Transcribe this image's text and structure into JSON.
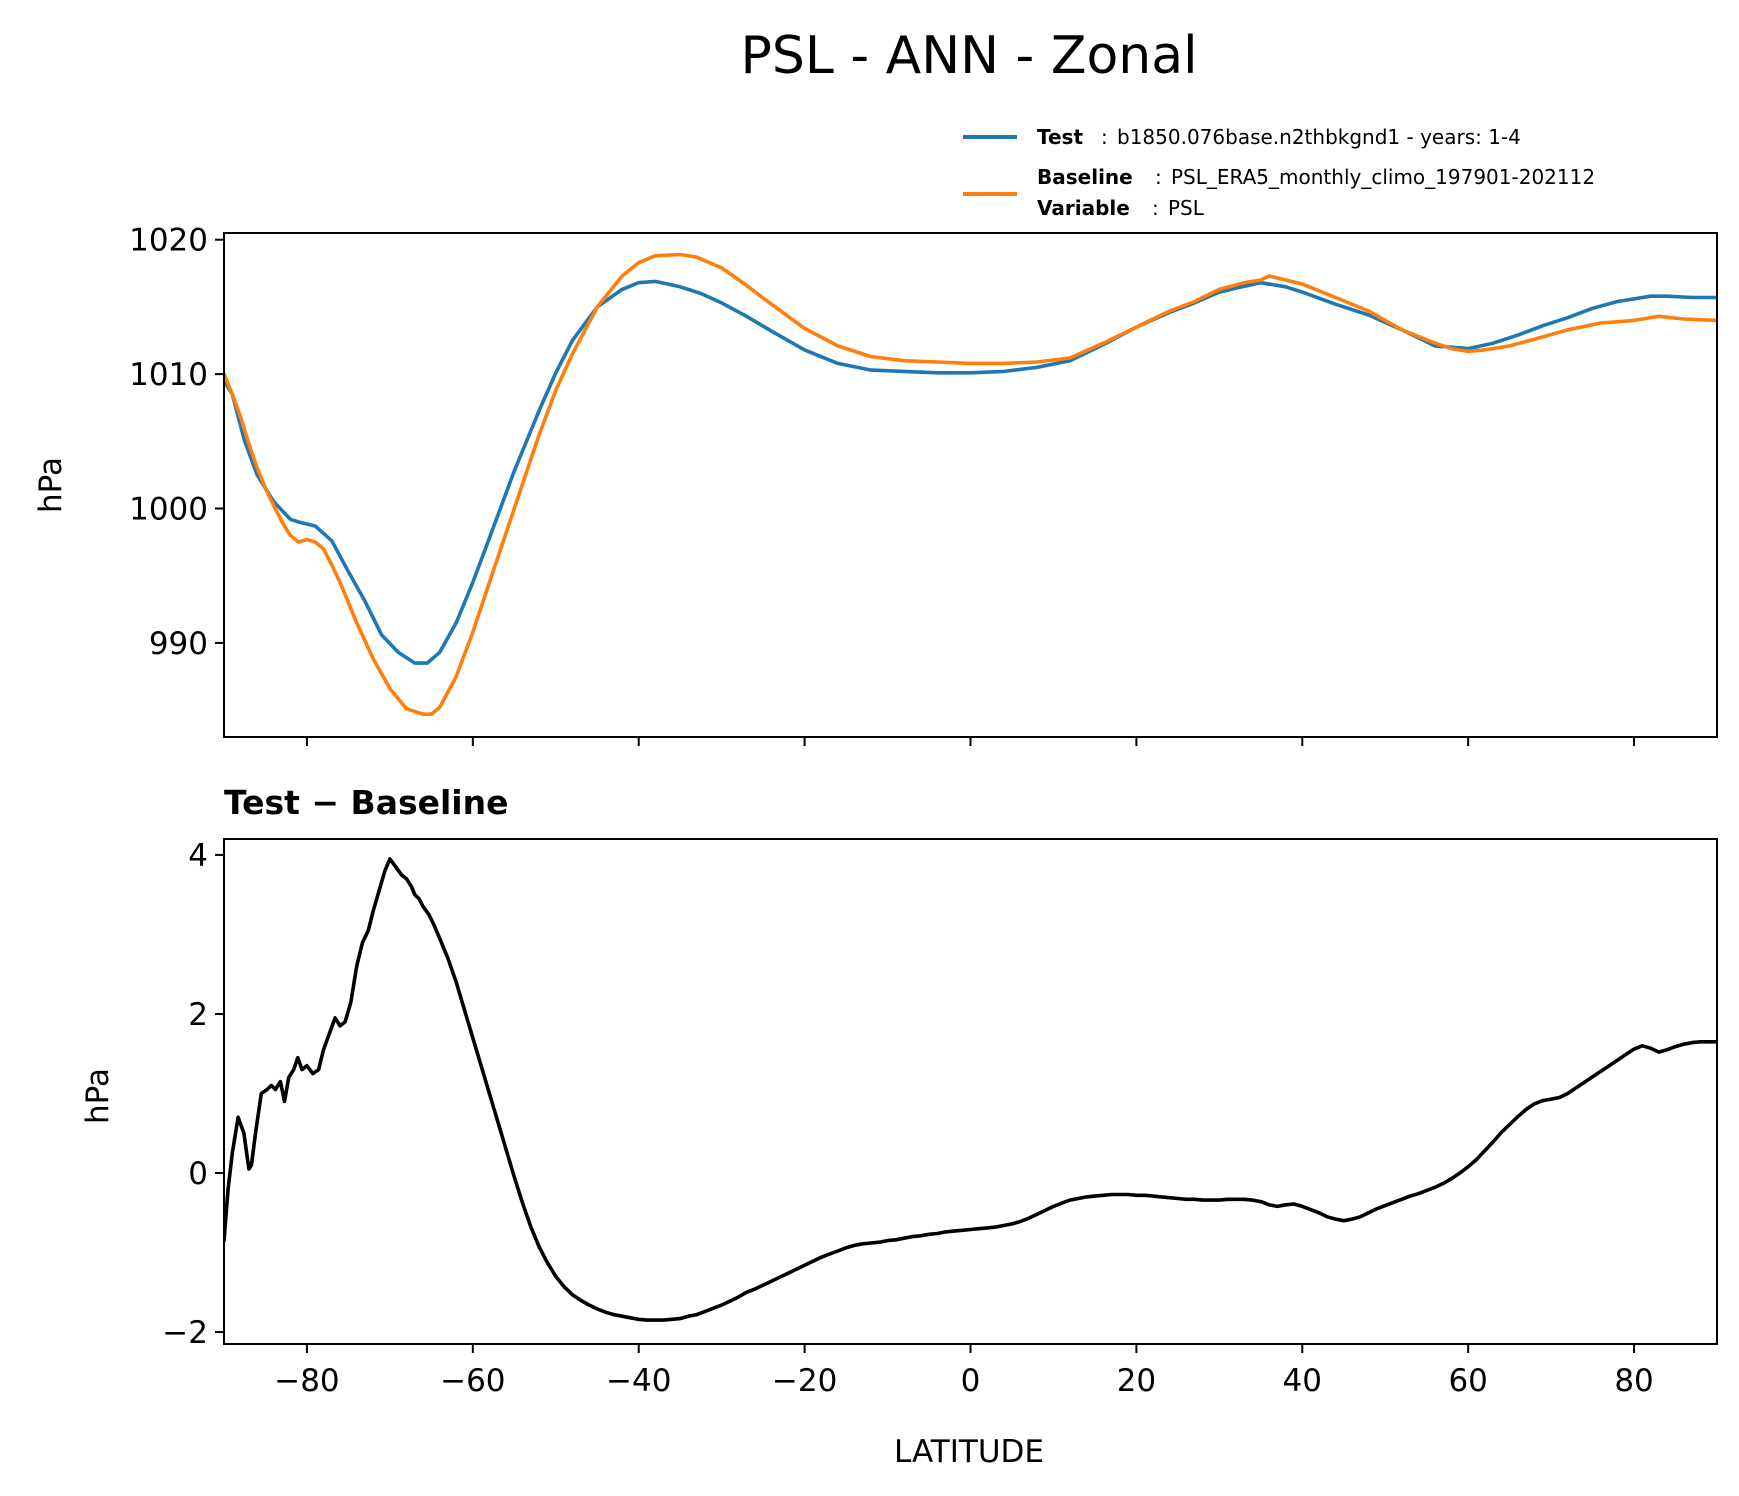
{
  "figure_title": "PSL - ANN - Zonal",
  "legend": {
    "test_label": "Test",
    "test_value": "b1850.076base.n2thbkgnd1 - years: 1-4",
    "baseline_label": "Baseline",
    "baseline_value": "PSL_ERA5_monthly_climo_197901-202112",
    "variable_label": "Variable",
    "variable_value": "PSL",
    "separator": ":"
  },
  "colors": {
    "test": "#1f77b4",
    "baseline": "#ff7f0e",
    "diff": "#000000"
  },
  "chart_data": [
    {
      "type": "line",
      "title": "",
      "xlabel": "",
      "ylabel": "hPa",
      "xlim": [
        -90,
        90
      ],
      "ylim": [
        983,
        1020.5
      ],
      "yticks": [
        990,
        1000,
        1010,
        1020
      ],
      "xticks": [
        -80,
        -60,
        -40,
        -20,
        0,
        20,
        40,
        60,
        80
      ],
      "xtick_labels_shown": false,
      "grid": false,
      "legend_position": "above-right",
      "series": [
        {
          "name": "Test",
          "color": "#1f77b4",
          "x": [
            -90,
            -89,
            -87.5,
            -86,
            -84,
            -82,
            -81,
            -79,
            -77,
            -75,
            -73,
            -71,
            -69,
            -67,
            -65.5,
            -64,
            -62,
            -60,
            -58,
            -55,
            -52,
            -50,
            -48,
            -45,
            -42,
            -40,
            -38,
            -35,
            -32.5,
            -30,
            -27,
            -24,
            -20,
            -16,
            -12,
            -8,
            -4,
            0,
            4,
            8,
            12,
            16,
            20,
            24,
            27,
            30,
            32,
            35,
            38,
            40,
            44,
            48,
            52,
            56,
            60,
            63,
            66,
            69,
            72,
            75,
            78,
            80,
            82,
            84,
            87,
            90
          ],
          "y": [
            1009.5,
            1008.5,
            1005,
            1002.5,
            1000.5,
            999.2,
            999.0,
            998.7,
            997.6,
            995.3,
            993.1,
            990.6,
            989.3,
            988.5,
            988.5,
            989.3,
            991.5,
            994.5,
            997.8,
            1002.8,
            1007.3,
            1010.1,
            1012.5,
            1015.0,
            1016.3,
            1016.8,
            1016.9,
            1016.5,
            1016.0,
            1015.3,
            1014.3,
            1013.2,
            1011.8,
            1010.8,
            1010.3,
            1010.2,
            1010.1,
            1010.1,
            1010.2,
            1010.5,
            1011.0,
            1012.2,
            1013.5,
            1014.6,
            1015.3,
            1016.1,
            1016.4,
            1016.8,
            1016.5,
            1016.1,
            1015.2,
            1014.4,
            1013.3,
            1012.1,
            1011.9,
            1012.3,
            1012.9,
            1013.6,
            1014.2,
            1014.9,
            1015.4,
            1015.6,
            1015.8,
            1015.8,
            1015.7,
            1015.7
          ]
        },
        {
          "name": "Baseline",
          "color": "#ff7f0e",
          "x": [
            -90,
            -89,
            -88,
            -87,
            -86,
            -85,
            -84,
            -83,
            -82,
            -81,
            -80,
            -79,
            -78,
            -77,
            -76,
            -74,
            -72,
            -70,
            -68,
            -66,
            -65,
            -64,
            -62,
            -60,
            -58,
            -55,
            -52,
            -50,
            -48,
            -45,
            -42,
            -40,
            -38,
            -35,
            -33,
            -30,
            -27,
            -24,
            -20,
            -16,
            -12,
            -8,
            -4,
            0,
            4,
            8,
            12,
            16,
            20,
            24,
            27,
            30,
            33,
            35,
            36,
            38,
            40,
            44,
            48,
            52,
            56,
            58,
            60,
            62,
            65,
            68,
            72,
            76,
            80,
            83,
            86,
            90
          ],
          "y": [
            1010.0,
            1008.5,
            1006.8,
            1004.8,
            1003.0,
            1001.5,
            1000.2,
            999.0,
            998.0,
            997.5,
            997.7,
            997.5,
            997.0,
            995.8,
            994.5,
            991.5,
            988.8,
            986.6,
            985.1,
            984.7,
            984.7,
            985.2,
            987.5,
            990.8,
            994.5,
            1000.0,
            1005.5,
            1008.8,
            1011.5,
            1015.0,
            1017.3,
            1018.3,
            1018.8,
            1018.9,
            1018.7,
            1017.9,
            1016.6,
            1015.2,
            1013.4,
            1012.1,
            1011.3,
            1011.0,
            1010.9,
            1010.8,
            1010.8,
            1010.9,
            1011.2,
            1012.3,
            1013.5,
            1014.7,
            1015.4,
            1016.3,
            1016.8,
            1017.0,
            1017.3,
            1017.0,
            1016.7,
            1015.7,
            1014.7,
            1013.3,
            1012.3,
            1011.9,
            1011.7,
            1011.8,
            1012.1,
            1012.6,
            1013.3,
            1013.8,
            1014.0,
            1014.3,
            1014.1,
            1014.0
          ]
        }
      ]
    },
    {
      "type": "line",
      "title": "Test − Baseline",
      "xlabel": "LATITUDE",
      "ylabel": "hPa",
      "xlim": [
        -90,
        90
      ],
      "ylim": [
        -2.15,
        4.2
      ],
      "yticks": [
        -2,
        0,
        2,
        4
      ],
      "ytick_labels": [
        "−2",
        "0",
        "2",
        "4"
      ],
      "xticks": [
        -80,
        -60,
        -40,
        -20,
        0,
        20,
        40,
        60,
        80
      ],
      "xtick_labels": [
        "−80",
        "−60",
        "−40",
        "−20",
        "0",
        "20",
        "40",
        "60",
        "80"
      ],
      "grid": false,
      "series": [
        {
          "name": "",
          "color": "#000000",
          "x": [
            -90,
            -89.5,
            -89,
            -88.3,
            -87.6,
            -87,
            -86.7,
            -86.2,
            -85.5,
            -84.8,
            -84.3,
            -83.8,
            -83.2,
            -82.7,
            -82.2,
            -81.6,
            -81.1,
            -80.6,
            -80,
            -79.3,
            -78.6,
            -78,
            -77.3,
            -76.6,
            -76,
            -75.4,
            -74.7,
            -74,
            -73.3,
            -72.6,
            -72,
            -71.3,
            -70.6,
            -70,
            -69.3,
            -68.6,
            -68,
            -67.4,
            -67,
            -66.5,
            -66,
            -65.3,
            -64.6,
            -64,
            -63,
            -62,
            -61,
            -60,
            -59,
            -58,
            -57,
            -56,
            -55,
            -54,
            -53,
            -52,
            -51,
            -50,
            -49,
            -48,
            -47,
            -46,
            -45,
            -44,
            -43,
            -42,
            -41,
            -40,
            -39,
            -38,
            -37,
            -36,
            -35,
            -34,
            -33,
            -32,
            -31,
            -30,
            -29,
            -28,
            -27,
            -26,
            -25,
            -24,
            -23,
            -22,
            -21,
            -20,
            -19,
            -18,
            -17,
            -16,
            -15,
            -14,
            -13,
            -12,
            -11,
            -10,
            -9,
            -8,
            -7,
            -6,
            -5,
            -4,
            -3,
            -2,
            -1,
            0,
            1,
            2,
            3,
            4,
            5,
            6,
            7,
            8,
            9,
            10,
            11,
            12,
            13,
            14,
            15,
            16,
            17,
            18,
            19,
            20,
            21,
            22,
            23,
            24,
            25,
            26,
            27,
            28,
            29,
            30,
            31,
            32,
            33,
            34,
            35,
            36,
            37,
            38,
            39,
            40,
            41,
            42,
            43,
            44,
            45,
            46,
            47,
            48,
            49,
            50,
            51,
            52,
            53,
            54,
            55,
            56,
            57,
            58,
            59,
            60,
            61,
            62,
            63,
            64,
            65,
            66,
            67,
            68,
            69,
            70,
            71,
            72,
            73,
            74,
            75,
            76,
            77,
            78,
            79,
            80,
            81,
            82,
            83,
            84,
            85,
            86,
            87,
            88,
            89,
            90
          ],
          "y": [
            -0.85,
            -0.2,
            0.25,
            0.7,
            0.5,
            0.05,
            0.1,
            0.5,
            1.0,
            1.05,
            1.1,
            1.05,
            1.15,
            0.9,
            1.2,
            1.3,
            1.45,
            1.3,
            1.35,
            1.25,
            1.3,
            1.55,
            1.75,
            1.95,
            1.85,
            1.9,
            2.15,
            2.6,
            2.9,
            3.05,
            3.3,
            3.55,
            3.8,
            3.95,
            3.85,
            3.75,
            3.7,
            3.6,
            3.5,
            3.45,
            3.35,
            3.25,
            3.1,
            2.95,
            2.7,
            2.4,
            2.05,
            1.7,
            1.35,
            1.0,
            0.65,
            0.3,
            -0.05,
            -0.38,
            -0.68,
            -0.93,
            -1.13,
            -1.3,
            -1.43,
            -1.53,
            -1.6,
            -1.66,
            -1.71,
            -1.75,
            -1.78,
            -1.8,
            -1.82,
            -1.84,
            -1.85,
            -1.85,
            -1.85,
            -1.84,
            -1.83,
            -1.8,
            -1.78,
            -1.74,
            -1.7,
            -1.66,
            -1.61,
            -1.56,
            -1.5,
            -1.46,
            -1.41,
            -1.36,
            -1.31,
            -1.26,
            -1.21,
            -1.16,
            -1.11,
            -1.06,
            -1.02,
            -0.98,
            -0.94,
            -0.91,
            -0.89,
            -0.88,
            -0.87,
            -0.85,
            -0.84,
            -0.82,
            -0.8,
            -0.79,
            -0.77,
            -0.76,
            -0.74,
            -0.73,
            -0.72,
            -0.71,
            -0.7,
            -0.69,
            -0.68,
            -0.66,
            -0.64,
            -0.61,
            -0.57,
            -0.52,
            -0.47,
            -0.42,
            -0.38,
            -0.34,
            -0.32,
            -0.3,
            -0.29,
            -0.28,
            -0.27,
            -0.27,
            -0.27,
            -0.28,
            -0.28,
            -0.29,
            -0.3,
            -0.31,
            -0.32,
            -0.33,
            -0.33,
            -0.34,
            -0.34,
            -0.34,
            -0.33,
            -0.33,
            -0.33,
            -0.34,
            -0.36,
            -0.4,
            -0.42,
            -0.4,
            -0.39,
            -0.42,
            -0.46,
            -0.5,
            -0.55,
            -0.58,
            -0.6,
            -0.58,
            -0.55,
            -0.5,
            -0.45,
            -0.41,
            -0.37,
            -0.33,
            -0.29,
            -0.26,
            -0.22,
            -0.18,
            -0.13,
            -0.07,
            0.0,
            0.08,
            0.17,
            0.28,
            0.39,
            0.51,
            0.61,
            0.71,
            0.8,
            0.87,
            0.91,
            0.93,
            0.95,
            1.0,
            1.07,
            1.14,
            1.21,
            1.28,
            1.35,
            1.42,
            1.49,
            1.56,
            1.6,
            1.57,
            1.52,
            1.55,
            1.59,
            1.62,
            1.64,
            1.65,
            1.65,
            1.65
          ]
        }
      ]
    }
  ]
}
